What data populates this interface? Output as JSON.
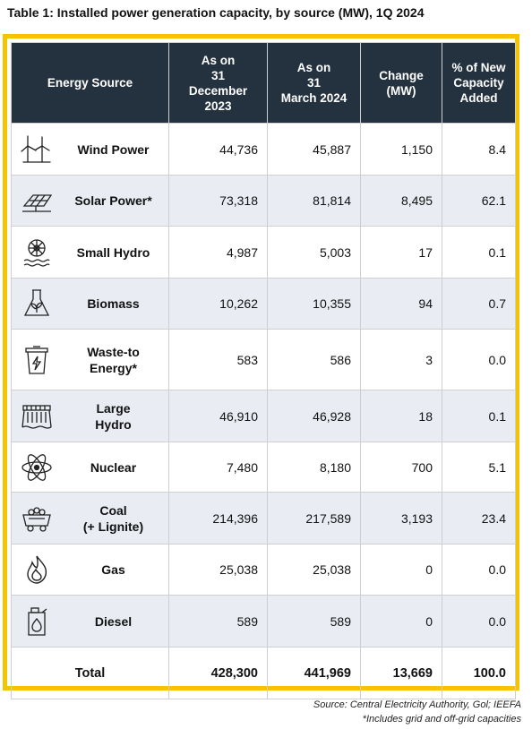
{
  "title": "Table 1: Installed power generation capacity, by source (MW), 1Q 2024",
  "headers": {
    "source": "Energy Source",
    "dec": [
      "As on",
      "31",
      "December",
      "2023"
    ],
    "mar": [
      "As on",
      "31",
      "March 2024"
    ],
    "change": [
      "Change",
      "(MW)"
    ],
    "pct": [
      "% of New",
      "Capacity",
      "Added"
    ]
  },
  "rows": [
    {
      "label": [
        "Wind Power"
      ],
      "icon": "wind-turbine-icon",
      "dec": "44,736",
      "mar": "45,887",
      "change": "1,150",
      "pct": "8.4"
    },
    {
      "label": [
        "Solar Power*"
      ],
      "icon": "solar-panel-icon",
      "dec": "73,318",
      "mar": "81,814",
      "change": "8,495",
      "pct": "62.1"
    },
    {
      "label": [
        "Small Hydro"
      ],
      "icon": "water-wheel-icon",
      "dec": "4,987",
      "mar": "5,003",
      "change": "17",
      "pct": "0.1"
    },
    {
      "label": [
        "Biomass"
      ],
      "icon": "biomass-flask-icon",
      "dec": "10,262",
      "mar": "10,355",
      "change": "94",
      "pct": "0.7"
    },
    {
      "label": [
        "Waste-to",
        "Energy*"
      ],
      "icon": "waste-bin-bolt-icon",
      "dec": "583",
      "mar": "586",
      "change": "3",
      "pct": "0.0"
    },
    {
      "label": [
        "Large",
        "Hydro"
      ],
      "icon": "dam-icon",
      "dec": "46,910",
      "mar": "46,928",
      "change": "18",
      "pct": "0.1"
    },
    {
      "label": [
        "Nuclear"
      ],
      "icon": "atom-icon",
      "dec": "7,480",
      "mar": "8,180",
      "change": "700",
      "pct": "5.1"
    },
    {
      "label": [
        "Coal",
        "(+ Lignite)"
      ],
      "icon": "coal-cart-icon",
      "dec": "214,396",
      "mar": "217,589",
      "change": "3,193",
      "pct": "23.4"
    },
    {
      "label": [
        "Gas"
      ],
      "icon": "gas-flame-icon",
      "dec": "25,038",
      "mar": "25,038",
      "change": "0",
      "pct": "0.0"
    },
    {
      "label": [
        "Diesel"
      ],
      "icon": "fuel-can-icon",
      "dec": "589",
      "mar": "589",
      "change": "0",
      "pct": "0.0"
    }
  ],
  "total": {
    "label": "Total",
    "dec": "428,300",
    "mar": "441,969",
    "change": "13,669",
    "pct": "100.0"
  },
  "footnotes": {
    "source": "Source: Central Electricity Authority, Gol; IEEFA",
    "note": "*Includes grid and off-grid capacities"
  },
  "colors": {
    "frame": "#f5c400",
    "header": "#24313f",
    "alt_row": "#e9edf3"
  }
}
